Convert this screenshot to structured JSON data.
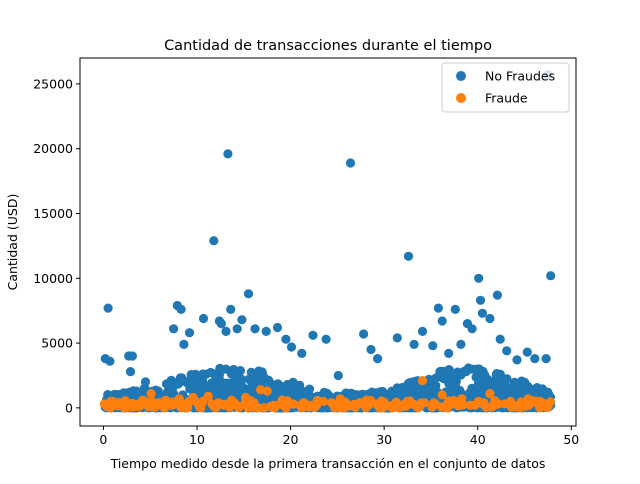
{
  "chart_data": {
    "type": "scatter",
    "title": "Cantidad de transacciones durante el tiempo",
    "xlabel": "Tiempo medido desde la primera transacción en el conjunto de datos",
    "ylabel": "Cantidad (USD)",
    "xlim": [
      -2.5,
      50.5
    ],
    "ylim": [
      -1400,
      27000
    ],
    "x_ticks": [
      0,
      10,
      20,
      30,
      40,
      50
    ],
    "x_tick_labels": [
      "0",
      "10",
      "20",
      "30",
      "40",
      "50"
    ],
    "y_ticks": [
      0,
      5000,
      10000,
      15000,
      20000,
      25000
    ],
    "y_tick_labels": [
      "0",
      "5000",
      "10000",
      "15000",
      "20000",
      "25000"
    ],
    "legend_position": "top-right",
    "series": [
      {
        "name": "No Fraudes",
        "color": "#1f77b4",
        "x": [
          0.5,
          0.2,
          0.7,
          2.7,
          3.1,
          2.9,
          4.5,
          7.5,
          7.9,
          8.3,
          8.6,
          9.2,
          10.7,
          11.8,
          12.4,
          12.6,
          13.3,
          13.1,
          13.6,
          14.3,
          14.8,
          15.5,
          16.2,
          17.4,
          18.6,
          19.5,
          20.1,
          21.2,
          22.4,
          23.8,
          25.1,
          26.4,
          27.8,
          28.6,
          29.3,
          31.4,
          32.6,
          33.2,
          34.1,
          35.2,
          35.8,
          36.2,
          36.9,
          37.6,
          38.2,
          38.9,
          39.4,
          40.1,
          40.3,
          40.5,
          41.3,
          42.1,
          42.4,
          43.1,
          44.2,
          45.3,
          46.1,
          47.3,
          47.8,
          47.5
        ],
        "y": [
          7700,
          3800,
          3600,
          4000,
          4000,
          2800,
          2000,
          6100,
          7900,
          7600,
          4900,
          5800,
          6900,
          12900,
          6700,
          6500,
          19600,
          5900,
          7600,
          6100,
          6800,
          8800,
          6100,
          5900,
          6200,
          5300,
          4700,
          4200,
          5600,
          5300,
          2500,
          18900,
          5700,
          4500,
          3800,
          5400,
          11700,
          4900,
          5900,
          4800,
          7700,
          6700,
          4200,
          7600,
          4900,
          6500,
          6100,
          10000,
          8300,
          7300,
          6900,
          8700,
          5300,
          4400,
          3700,
          4300,
          3800,
          3800,
          10200,
          25700
        ]
      },
      {
        "name": "Fraude",
        "color": "#ff7f0e",
        "x": [
          0.1,
          0.4,
          0.8,
          1.5,
          2.3,
          3.1,
          4.2,
          5.1,
          5.4,
          6.2,
          7.3,
          8.1,
          8.8,
          9.6,
          10.4,
          11.2,
          11.6,
          12.3,
          12.9,
          13.7,
          14.5,
          15.2,
          16.1,
          16.8,
          17.5,
          18.2,
          19.1,
          20.3,
          21.4,
          22.3,
          23.5,
          24.6,
          25.3,
          26.2,
          27.4,
          28.1,
          29.2,
          30.3,
          31.4,
          32.5,
          33.2,
          34.1,
          35.3,
          36.2,
          37.1,
          38.3,
          39.2,
          40.1,
          41.3,
          42.2,
          43.5,
          44.3,
          45.4,
          46.3,
          47.2
        ],
        "y": [
          300,
          100,
          500,
          200,
          150,
          350,
          600,
          1100,
          400,
          300,
          200,
          700,
          300,
          800,
          200,
          900,
          300,
          400,
          200,
          600,
          100,
          800,
          300,
          1400,
          1300,
          200,
          600,
          300,
          400,
          200,
          500,
          300,
          700,
          200,
          400,
          600,
          300,
          150,
          200,
          500,
          250,
          2100,
          400,
          1000,
          300,
          700,
          200,
          400,
          1100,
          300,
          500,
          200,
          700,
          500,
          300
        ]
      }
    ]
  }
}
